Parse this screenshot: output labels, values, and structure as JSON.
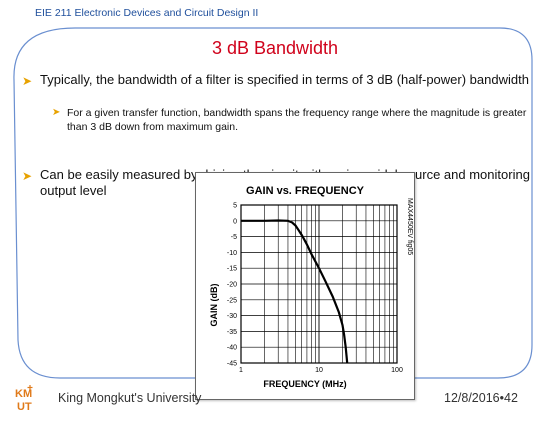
{
  "header": {
    "course": "EIE 211 Electronic Devices and Circuit Design II"
  },
  "slide": {
    "title": "3 dB Bandwidth",
    "bullets": [
      "Typically, the bandwidth of a filter is specified in terms of 3 dB (half-power) bandwidth",
      "For a given transfer function, bandwidth spans the frequency range where the magnitude is greater than 3 dB down from maximum gain.",
      "Can be easily measured by driving the circuit with a sinusoidal source and monitoring output level"
    ]
  },
  "chart_data": {
    "type": "line",
    "title": "GAIN vs. FREQUENCY",
    "xlabel": "FREQUENCY (MHz)",
    "ylabel": "GAIN (dB)",
    "x_scale": "log",
    "xlim": [
      1,
      100
    ],
    "ylim": [
      -45,
      5
    ],
    "xticks": [
      "1",
      "10",
      "100"
    ],
    "yticks": [
      "5",
      "0",
      "-5",
      "-10",
      "-15",
      "-20",
      "-25",
      "-30",
      "-35",
      "-40",
      "-45"
    ],
    "grid": true,
    "annotation": "MAX4450EV fig05",
    "series": [
      {
        "x": [
          1,
          2,
          3,
          4,
          4.5,
          5,
          5.5,
          6,
          6.5,
          7,
          8,
          10,
          12,
          15,
          18,
          20,
          21,
          22,
          23
        ],
        "y": [
          0,
          0,
          0.1,
          0,
          -0.5,
          -1.5,
          -3,
          -4.5,
          -6,
          -7.5,
          -10.5,
          -15,
          -19,
          -24,
          -29,
          -33,
          -36,
          -40,
          -45
        ]
      }
    ]
  },
  "footer": {
    "institution": "King Mongkut's University",
    "date": "12/8/2016",
    "separator": "•",
    "page": "42"
  },
  "colors": {
    "title": "#d0021b",
    "course": "#1f4f9c",
    "bullet_arrow": "#e8a200",
    "frame": "#6a8fd0"
  }
}
